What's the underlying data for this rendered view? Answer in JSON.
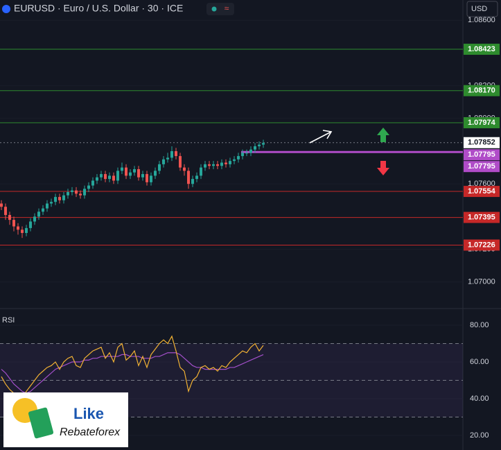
{
  "header": {
    "symbol": "EURUSD · Euro / U.S. Dollar · 30 · ICE",
    "currency": "USD"
  },
  "logo": {
    "title": "Like",
    "subtitle": "Rebateforex"
  },
  "chart_data": [
    {
      "type": "candlestick",
      "up_color": "#26a69a",
      "down_color": "#ef5350",
      "open": [
        1.0748,
        1.0746,
        1.0741,
        1.0738,
        1.0734,
        1.0732,
        1.073,
        1.0733,
        1.0737,
        1.074,
        1.0743,
        1.0745,
        1.0748,
        1.0749,
        1.0752,
        1.075,
        1.0753,
        1.0755,
        1.0756,
        1.0754,
        1.0753,
        1.0757,
        1.0759,
        1.0762,
        1.0764,
        1.0766,
        1.0763,
        1.0765,
        1.0762,
        1.0768,
        1.077,
        1.0765,
        1.0767,
        1.0769,
        1.0764,
        1.0766,
        1.0761,
        1.0765,
        1.0768,
        1.0772,
        1.0775,
        1.0776,
        1.078,
        1.0777,
        1.077,
        1.0768,
        1.076,
        1.0763,
        1.0765,
        1.077,
        1.0772,
        1.0771,
        1.0772,
        1.0771,
        1.0773,
        1.0772,
        1.0774,
        1.0775,
        1.0777,
        1.0779,
        1.0779,
        1.0781,
        1.0783,
        1.0784
      ],
      "high": [
        1.075,
        1.0748,
        1.0743,
        1.074,
        1.0736,
        1.0734,
        1.0735,
        1.0739,
        1.0742,
        1.0745,
        1.0747,
        1.075,
        1.0751,
        1.0754,
        1.0754,
        1.0755,
        1.0757,
        1.0758,
        1.0758,
        1.0756,
        1.0759,
        1.0761,
        1.0764,
        1.0766,
        1.0768,
        1.0768,
        1.0767,
        1.0767,
        1.077,
        1.0773,
        1.0772,
        1.0769,
        1.0771,
        1.0771,
        1.0768,
        1.0768,
        1.0767,
        1.077,
        1.0774,
        1.0777,
        1.0779,
        1.0783,
        1.0782,
        1.0779,
        1.0772,
        1.077,
        1.0765,
        1.0767,
        1.0772,
        1.0774,
        1.0774,
        1.0774,
        1.0774,
        1.0775,
        1.0775,
        1.0776,
        1.0777,
        1.0779,
        1.0781,
        1.0781,
        1.0783,
        1.0785,
        1.0786,
        1.0787
      ],
      "low": [
        1.0744,
        1.0738,
        1.0735,
        1.0731,
        1.0729,
        1.0727,
        1.0728,
        1.0731,
        1.0735,
        1.0738,
        1.0741,
        1.0743,
        1.0746,
        1.0747,
        1.0748,
        1.0748,
        1.0751,
        1.0753,
        1.0752,
        1.0751,
        1.0751,
        1.0755,
        1.0757,
        1.076,
        1.0762,
        1.0761,
        1.0761,
        1.076,
        1.076,
        1.0766,
        1.0763,
        1.0763,
        1.0765,
        1.0762,
        1.0762,
        1.0759,
        1.0759,
        1.0763,
        1.0766,
        1.077,
        1.0773,
        1.0774,
        1.0775,
        1.0768,
        1.0765,
        1.0757,
        1.0758,
        1.0761,
        1.0763,
        1.0768,
        1.0769,
        1.0769,
        1.0769,
        1.0769,
        1.077,
        1.077,
        1.0772,
        1.0773,
        1.0775,
        1.0777,
        1.0777,
        1.0779,
        1.0781,
        1.0782
      ],
      "close": [
        1.0746,
        1.0741,
        1.0738,
        1.0734,
        1.0732,
        1.073,
        1.0733,
        1.0737,
        1.074,
        1.0743,
        1.0745,
        1.0748,
        1.0749,
        1.0752,
        1.075,
        1.0753,
        1.0755,
        1.0756,
        1.0754,
        1.0753,
        1.0757,
        1.0759,
        1.0762,
        1.0764,
        1.0766,
        1.0763,
        1.0765,
        1.0762,
        1.0768,
        1.077,
        1.0765,
        1.0767,
        1.0769,
        1.0764,
        1.0766,
        1.0761,
        1.0765,
        1.0768,
        1.0772,
        1.0775,
        1.0776,
        1.078,
        1.0777,
        1.077,
        1.0768,
        1.076,
        1.0763,
        1.0765,
        1.077,
        1.0772,
        1.0771,
        1.0772,
        1.0771,
        1.0773,
        1.0772,
        1.0774,
        1.0775,
        1.0777,
        1.0779,
        1.0779,
        1.0781,
        1.0783,
        1.0784,
        1.0785
      ],
      "ylim": [
        1.06838,
        1.08724
      ],
      "yticks": [
        {
          "value": 1.07,
          "label": "1.07000"
        },
        {
          "value": 1.072,
          "label": "1.07200"
        },
        {
          "value": 1.076,
          "label": "1.07600"
        },
        {
          "value": 1.08,
          "label": "1.08000"
        },
        {
          "value": 1.082,
          "label": "1.08200"
        },
        {
          "value": 1.086,
          "label": "1.08600"
        }
      ],
      "levels": [
        {
          "value": 1.08423,
          "label": "1.08423",
          "color": "#2e8b2e"
        },
        {
          "value": 1.0817,
          "label": "1.08170",
          "color": "#2e8b2e"
        },
        {
          "value": 1.07974,
          "label": "1.07974",
          "color": "#2e8b2e"
        },
        {
          "value": 1.07554,
          "label": "1.07554",
          "color": "#c62828"
        },
        {
          "value": 1.07395,
          "label": "1.07395",
          "color": "#c62828"
        },
        {
          "value": 1.07226,
          "label": "1.07226",
          "color": "#c62828"
        }
      ],
      "last_price": {
        "value": 1.07852,
        "label": "1.07852"
      },
      "signal": {
        "value": 1.07795,
        "labels": [
          "1.07795",
          "1.07795"
        ],
        "color": "#b04cc8"
      }
    },
    {
      "type": "line",
      "title": "RSI",
      "ylim": [
        12.08,
        89.06
      ],
      "yticks": [
        {
          "value": 80,
          "label": "80.00"
        },
        {
          "value": 60,
          "label": "60.00"
        },
        {
          "value": 40,
          "label": "40.00"
        },
        {
          "value": 20,
          "label": "20.00"
        }
      ],
      "bands": [
        70,
        50,
        30
      ],
      "series": [
        {
          "color": "#f2b233",
          "values": [
            52,
            48,
            45,
            43,
            41,
            40,
            44,
            47,
            50,
            53,
            55,
            57,
            58,
            60,
            56,
            60,
            62,
            63,
            58,
            57,
            62,
            64,
            66,
            67,
            68,
            62,
            65,
            60,
            68,
            70,
            61,
            63,
            66,
            58,
            63,
            57,
            64,
            67,
            70,
            72,
            70,
            74,
            66,
            57,
            55,
            44,
            50,
            52,
            57,
            58,
            56,
            57,
            55,
            58,
            57,
            60,
            62,
            64,
            66,
            65,
            68,
            70,
            66,
            69
          ]
        },
        {
          "color": "#a24fc9",
          "values": [
            56,
            54,
            51,
            48,
            46,
            44,
            43,
            44,
            46,
            48,
            50,
            52,
            54,
            56,
            57,
            58,
            59,
            60,
            60,
            60,
            61,
            61,
            62,
            62,
            63,
            63,
            63,
            63,
            63,
            64,
            64,
            63,
            63,
            63,
            62,
            62,
            62,
            63,
            63,
            64,
            65,
            65,
            65,
            64,
            62,
            60,
            58,
            57,
            57,
            56,
            56,
            56,
            56,
            56,
            56,
            57,
            57,
            58,
            59,
            60,
            61,
            62,
            63,
            64
          ]
        }
      ]
    }
  ]
}
